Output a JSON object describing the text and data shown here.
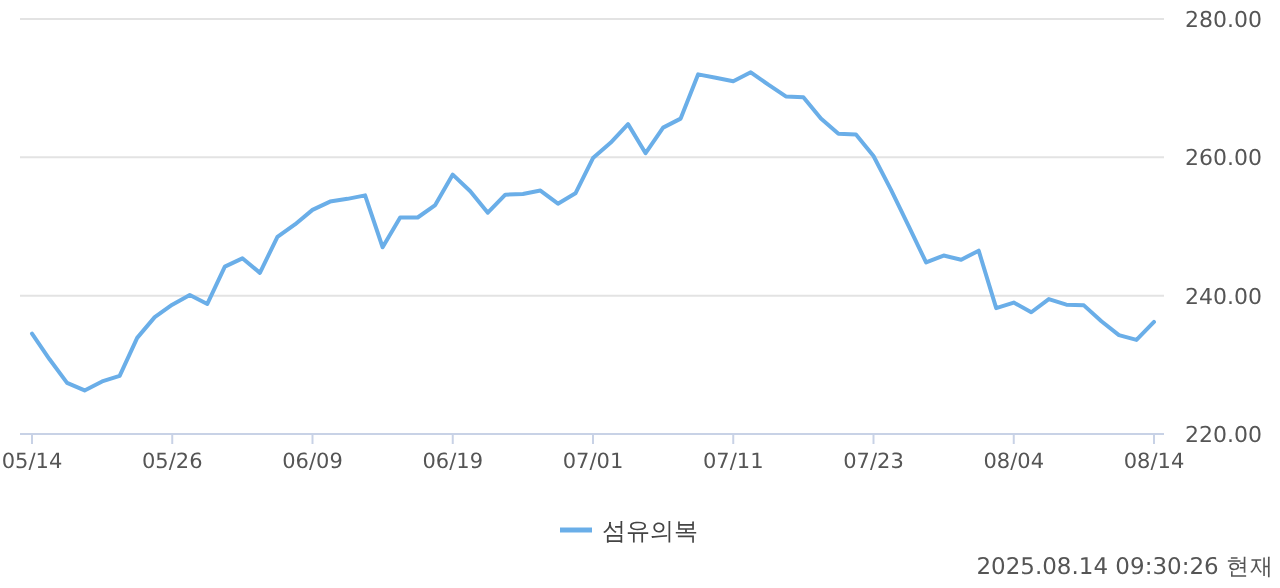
{
  "chart_data": {
    "type": "line",
    "categories": [
      "05/14",
      null,
      null,
      null,
      null,
      null,
      null,
      null,
      "05/26",
      null,
      null,
      null,
      null,
      null,
      null,
      null,
      "06/09",
      null,
      null,
      null,
      null,
      null,
      null,
      null,
      "06/19",
      null,
      null,
      null,
      null,
      null,
      null,
      null,
      "07/01",
      null,
      null,
      null,
      null,
      null,
      null,
      null,
      "07/11",
      null,
      null,
      null,
      null,
      null,
      null,
      null,
      "07/23",
      null,
      null,
      null,
      null,
      null,
      null,
      null,
      "08/04",
      null,
      null,
      null,
      null,
      null,
      null,
      null,
      "08/14"
    ],
    "series": [
      {
        "name": "섬유의복",
        "color": "#6aaee8",
        "values": [
          234.5,
          230.8,
          227.4,
          226.3,
          227.6,
          228.4,
          233.9,
          236.9,
          238.7,
          240.1,
          238.8,
          244.2,
          245.4,
          243.3,
          248.5,
          250.3,
          252.4,
          253.6,
          254.0,
          254.5,
          247.0,
          251.3,
          251.3,
          253.1,
          257.5,
          255.1,
          252.0,
          254.6,
          254.7,
          255.2,
          253.3,
          254.8,
          259.9,
          262.1,
          264.8,
          260.6,
          264.3,
          265.6,
          272.0,
          271.5,
          271.0,
          272.3,
          270.5,
          268.8,
          268.7,
          265.6,
          263.4,
          263.3,
          260.2,
          255.3,
          250.1,
          244.8,
          245.8,
          245.2,
          246.5,
          238.2,
          239.0,
          237.6,
          239.5,
          238.7,
          238.6,
          236.3,
          234.3,
          233.6,
          236.2
        ]
      }
    ],
    "ylim": [
      220,
      280
    ],
    "yticks": [
      {
        "value": 220,
        "label": "220.00"
      },
      {
        "value": 240,
        "label": "240.00"
      },
      {
        "value": 260,
        "label": "260.00"
      },
      {
        "value": 280,
        "label": "280.00"
      }
    ],
    "grid": "y",
    "legend": "bottom",
    "marker": "none",
    "line_style": "solid",
    "annotations": [
      "2025.08.14 09:30:26 현재"
    ]
  }
}
